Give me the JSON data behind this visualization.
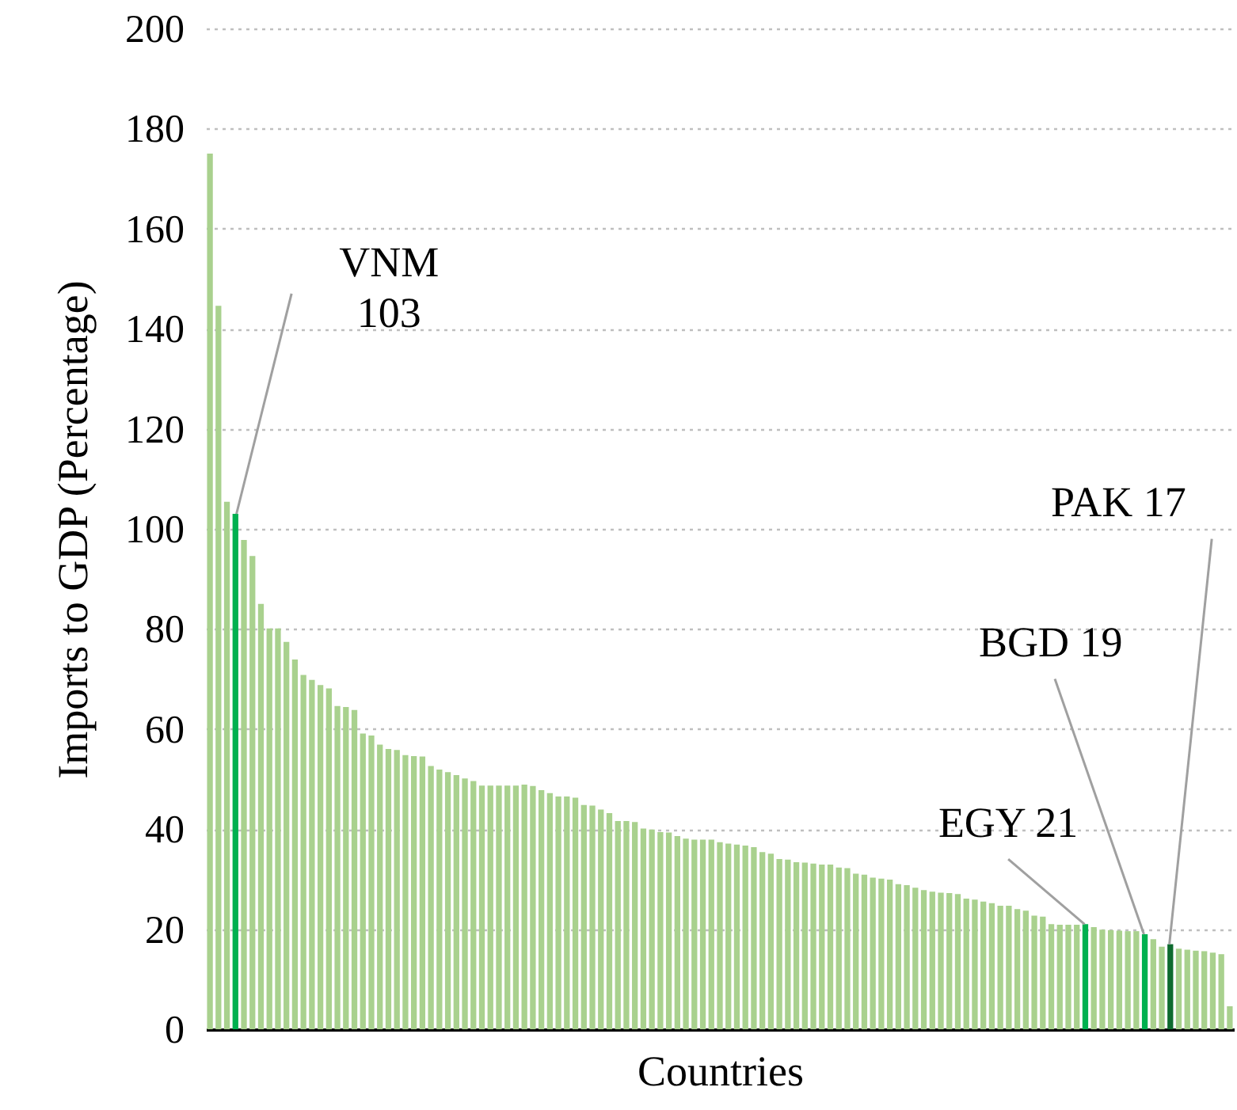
{
  "chart_data": {
    "type": "bar",
    "xlabel": "Countries",
    "ylabel": "Imports to GDP (Percentage)",
    "categories": [
      null,
      null,
      null,
      null,
      null,
      null,
      null,
      null,
      null,
      null,
      null,
      null,
      null,
      null,
      null,
      null,
      null,
      null,
      null,
      null,
      null,
      null,
      null,
      null,
      null,
      null,
      null,
      null,
      null,
      null,
      null,
      null,
      null,
      null,
      null,
      null,
      null,
      null,
      null,
      null,
      null,
      null,
      null,
      null,
      null,
      null,
      null,
      null,
      null,
      null,
      null,
      null,
      null,
      null,
      null,
      null,
      null,
      null,
      null,
      null,
      null,
      null,
      null,
      null,
      null,
      null,
      null,
      null,
      null,
      null,
      null,
      null,
      null,
      null,
      null,
      null,
      null,
      null,
      null,
      null,
      null,
      null,
      null,
      null,
      null,
      null,
      null,
      null,
      null,
      null,
      null,
      null,
      null,
      null,
      null,
      null,
      null,
      null,
      null,
      null,
      null,
      null,
      null,
      null,
      null,
      null,
      null,
      null,
      null,
      null,
      null,
      null,
      null,
      null,
      null,
      null,
      null,
      null,
      null,
      null,
      null
    ],
    "values": [
      175,
      144.6,
      105.4,
      103,
      97.8,
      94.6,
      85,
      80.1,
      80.1,
      77.4,
      73.9,
      70.8,
      69.8,
      68.8,
      68.1,
      64.6,
      64.4,
      63.8,
      59.1,
      58.7,
      56.9,
      56,
      55.8,
      54.8,
      54.6,
      54.5,
      52.6,
      51.9,
      51.4,
      50.8,
      50.1,
      49.6,
      48.7,
      48.7,
      48.7,
      48.7,
      48.7,
      48.9,
      48.6,
      47.8,
      47.2,
      46.5,
      46.5,
      46.3,
      44.8,
      44.7,
      43.9,
      43.2,
      41.6,
      41.6,
      41.4,
      40.1,
      39.9,
      39.4,
      39.3,
      38.6,
      38.1,
      37.9,
      37.9,
      37.9,
      37.4,
      37.1,
      36.9,
      36.7,
      36.4,
      35.4,
      35.1,
      34,
      33.9,
      33.4,
      33.3,
      33.1,
      32.9,
      32.9,
      32.3,
      32.2,
      31.1,
      30.9,
      30.3,
      30.1,
      29.9,
      29,
      28.8,
      28.3,
      27.8,
      27.5,
      27.3,
      27.2,
      27,
      26.1,
      25.9,
      25.5,
      25.2,
      24.7,
      24.7,
      24,
      23.7,
      22.7,
      22.5,
      21,
      20.9,
      20.9,
      20.9,
      21,
      20.4,
      19.9,
      19.8,
      19.7,
      19.6,
      19.6,
      19,
      18,
      16.5,
      17,
      16.1,
      15.9,
      15.7,
      15.6,
      15.3,
      15,
      4.6
    ],
    "colors": [
      "#a9d18e",
      "#a9d18e",
      "#a9d18e",
      "#00b050",
      "#a9d18e",
      "#a9d18e",
      "#a9d18e",
      "#a9d18e",
      "#a9d18e",
      "#a9d18e",
      "#a9d18e",
      "#a9d18e",
      "#a9d18e",
      "#a9d18e",
      "#a9d18e",
      "#a9d18e",
      "#a9d18e",
      "#a9d18e",
      "#a9d18e",
      "#a9d18e",
      "#a9d18e",
      "#a9d18e",
      "#a9d18e",
      "#a9d18e",
      "#a9d18e",
      "#a9d18e",
      "#a9d18e",
      "#a9d18e",
      "#a9d18e",
      "#a9d18e",
      "#a9d18e",
      "#a9d18e",
      "#a9d18e",
      "#a9d18e",
      "#a9d18e",
      "#a9d18e",
      "#a9d18e",
      "#a9d18e",
      "#a9d18e",
      "#a9d18e",
      "#a9d18e",
      "#a9d18e",
      "#a9d18e",
      "#a9d18e",
      "#a9d18e",
      "#a9d18e",
      "#a9d18e",
      "#a9d18e",
      "#a9d18e",
      "#a9d18e",
      "#a9d18e",
      "#a9d18e",
      "#a9d18e",
      "#a9d18e",
      "#a9d18e",
      "#a9d18e",
      "#a9d18e",
      "#a9d18e",
      "#a9d18e",
      "#a9d18e",
      "#a9d18e",
      "#a9d18e",
      "#a9d18e",
      "#a9d18e",
      "#a9d18e",
      "#a9d18e",
      "#a9d18e",
      "#a9d18e",
      "#a9d18e",
      "#a9d18e",
      "#a9d18e",
      "#a9d18e",
      "#a9d18e",
      "#a9d18e",
      "#a9d18e",
      "#a9d18e",
      "#a9d18e",
      "#a9d18e",
      "#a9d18e",
      "#a9d18e",
      "#a9d18e",
      "#a9d18e",
      "#a9d18e",
      "#a9d18e",
      "#a9d18e",
      "#a9d18e",
      "#a9d18e",
      "#a9d18e",
      "#a9d18e",
      "#a9d18e",
      "#a9d18e",
      "#a9d18e",
      "#a9d18e",
      "#a9d18e",
      "#a9d18e",
      "#a9d18e",
      "#a9d18e",
      "#a9d18e",
      "#a9d18e",
      "#a9d18e",
      "#a9d18e",
      "#a9d18e",
      "#a9d18e",
      "#00b050",
      "#a9d18e",
      "#a9d18e",
      "#a9d18e",
      "#a9d18e",
      "#a9d18e",
      "#a9d18e",
      "#00b050",
      "#a9d18e",
      "#a9d18e",
      "#0e6b2f",
      "#a9d18e",
      "#a9d18e",
      "#a9d18e",
      "#a9d18e",
      "#a9d18e",
      "#a9d18e",
      "#a9d18e"
    ],
    "ylim": [
      0,
      200
    ],
    "yticks": [
      0,
      20,
      40,
      60,
      80,
      100,
      120,
      140,
      160,
      180,
      200
    ],
    "grid": "y",
    "tick_labels": "y",
    "annotations": [
      "VNM\n103",
      "EGY 21",
      "BGD 19",
      "PAK 17"
    ]
  }
}
